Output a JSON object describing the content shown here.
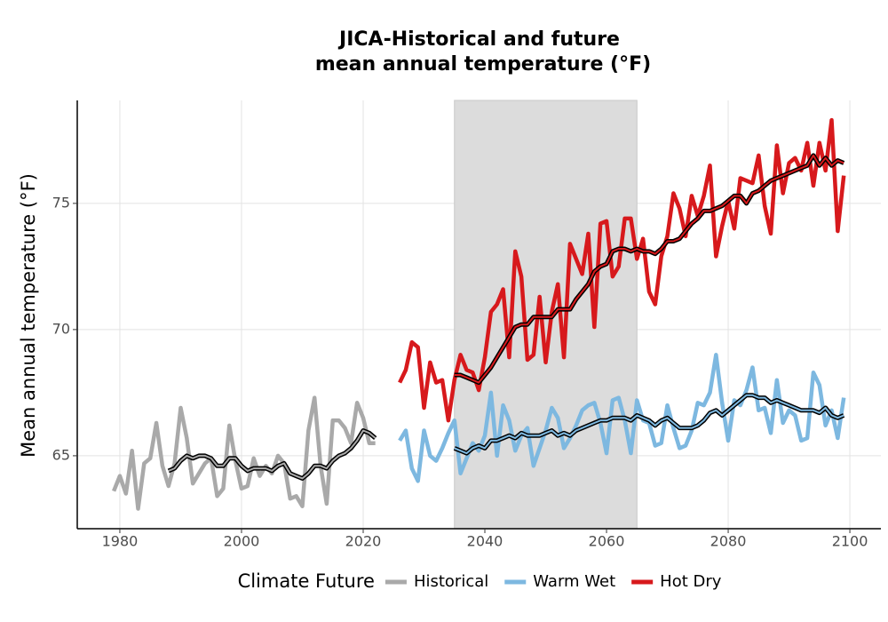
{
  "chart_data": {
    "type": "line",
    "title": [
      "JICA-Historical and future",
      "mean annual temperature (°F)"
    ],
    "y_label": "Mean annual temperature (°F)",
    "legend_title": "Climate Future",
    "legend": "bottom",
    "grid": true,
    "shade": [
      2035,
      2065
    ],
    "xlim": [
      1973,
      2105.1
    ],
    "xticks": [
      1980,
      2000,
      2020,
      2040,
      2060,
      2080,
      2100
    ],
    "ylim": [
      62.11,
      79.08
    ],
    "yticks": [
      65,
      70,
      75
    ],
    "series": [
      {
        "name": "Historical",
        "color": "#a9a9a9",
        "x": [
          1979,
          1980,
          1981,
          1982,
          1983,
          1984,
          1985,
          1986,
          1987,
          1988,
          1989,
          1990,
          1991,
          1992,
          1993,
          1994,
          1995,
          1996,
          1997,
          1998,
          1999,
          2000,
          2001,
          2002,
          2003,
          2004,
          2005,
          2006,
          2007,
          2008,
          2009,
          2010,
          2011,
          2012,
          2013,
          2014,
          2015,
          2016,
          2017,
          2018,
          2019,
          2020,
          2021,
          2022
        ],
        "values": [
          63.6,
          64.2,
          63.5,
          65.2,
          62.9,
          64.7,
          64.9,
          66.3,
          64.6,
          63.8,
          64.7,
          66.9,
          65.7,
          63.9,
          64.3,
          64.7,
          64.9,
          63.4,
          63.7,
          66.2,
          64.8,
          63.7,
          63.8,
          64.9,
          64.2,
          64.6,
          64.3,
          65.0,
          64.7,
          63.3,
          63.4,
          63.0,
          66.0,
          67.3,
          64.6,
          63.1,
          66.4,
          66.4,
          66.1,
          65.5,
          67.1,
          66.5,
          65.5,
          65.5
        ],
        "smooth": [
          null,
          null,
          null,
          null,
          null,
          null,
          null,
          null,
          null,
          64.4,
          64.5,
          64.8,
          65.0,
          64.9,
          65.0,
          65.0,
          64.9,
          64.6,
          64.6,
          64.9,
          64.9,
          64.6,
          64.4,
          64.5,
          64.5,
          64.5,
          64.4,
          64.6,
          64.7,
          64.3,
          64.2,
          64.1,
          64.3,
          64.6,
          64.6,
          64.5,
          64.8,
          65.0,
          65.1,
          65.3,
          65.6,
          66.0,
          65.9,
          65.7
        ]
      },
      {
        "name": "Warm Wet",
        "color": "#7db8e0",
        "x": [
          2026,
          2027,
          2028,
          2029,
          2030,
          2031,
          2032,
          2033,
          2034,
          2035,
          2036,
          2037,
          2038,
          2039,
          2040,
          2041,
          2042,
          2043,
          2044,
          2045,
          2046,
          2047,
          2048,
          2049,
          2050,
          2051,
          2052,
          2053,
          2054,
          2055,
          2056,
          2057,
          2058,
          2059,
          2060,
          2061,
          2062,
          2063,
          2064,
          2065,
          2066,
          2067,
          2068,
          2069,
          2070,
          2071,
          2072,
          2073,
          2074,
          2075,
          2076,
          2077,
          2078,
          2079,
          2080,
          2081,
          2082,
          2083,
          2084,
          2085,
          2086,
          2087,
          2088,
          2089,
          2090,
          2091,
          2092,
          2093,
          2094,
          2095,
          2096,
          2097,
          2098,
          2099
        ],
        "values": [
          65.6,
          66.0,
          64.5,
          64.0,
          66.0,
          65.0,
          64.8,
          65.3,
          65.9,
          66.4,
          64.3,
          64.9,
          65.5,
          65.2,
          65.8,
          67.5,
          65.0,
          67.0,
          66.4,
          65.2,
          65.8,
          66.1,
          64.6,
          65.3,
          66.0,
          66.9,
          66.5,
          65.3,
          65.7,
          66.2,
          66.8,
          67.0,
          67.1,
          66.3,
          65.1,
          67.2,
          67.3,
          66.4,
          65.1,
          67.2,
          66.4,
          66.3,
          65.4,
          65.5,
          67.0,
          66.1,
          65.3,
          65.4,
          66.0,
          67.1,
          67.0,
          67.5,
          69.0,
          67.1,
          65.6,
          67.2,
          67.0,
          67.6,
          68.5,
          66.8,
          66.9,
          65.9,
          68.0,
          66.3,
          66.8,
          66.6,
          65.6,
          65.7,
          68.3,
          67.8,
          66.2,
          66.8,
          65.7,
          67.3
        ],
        "smooth": [
          null,
          null,
          null,
          null,
          null,
          null,
          null,
          null,
          null,
          65.3,
          65.2,
          65.1,
          65.3,
          65.4,
          65.3,
          65.6,
          65.6,
          65.7,
          65.8,
          65.7,
          65.9,
          65.8,
          65.8,
          65.8,
          65.9,
          66.0,
          65.8,
          65.9,
          65.8,
          66.0,
          66.1,
          66.2,
          66.3,
          66.4,
          66.4,
          66.5,
          66.5,
          66.5,
          66.4,
          66.6,
          66.5,
          66.4,
          66.2,
          66.4,
          66.5,
          66.3,
          66.1,
          66.1,
          66.1,
          66.2,
          66.4,
          66.7,
          66.8,
          66.6,
          66.8,
          67.0,
          67.2,
          67.4,
          67.4,
          67.3,
          67.3,
          67.1,
          67.2,
          67.1,
          67.0,
          66.9,
          66.8,
          66.8,
          66.8,
          66.7,
          66.9,
          66.6,
          66.5,
          66.6
        ]
      },
      {
        "name": "Hot Dry",
        "color": "#d7191c",
        "x": [
          2026,
          2027,
          2028,
          2029,
          2030,
          2031,
          2032,
          2033,
          2034,
          2035,
          2036,
          2037,
          2038,
          2039,
          2040,
          2041,
          2042,
          2043,
          2044,
          2045,
          2046,
          2047,
          2048,
          2049,
          2050,
          2051,
          2052,
          2053,
          2054,
          2055,
          2056,
          2057,
          2058,
          2059,
          2060,
          2061,
          2062,
          2063,
          2064,
          2065,
          2066,
          2067,
          2068,
          2069,
          2070,
          2071,
          2072,
          2073,
          2074,
          2075,
          2076,
          2077,
          2078,
          2079,
          2080,
          2081,
          2082,
          2083,
          2084,
          2085,
          2086,
          2087,
          2088,
          2089,
          2090,
          2091,
          2092,
          2093,
          2094,
          2095,
          2096,
          2097,
          2098,
          2099
        ],
        "values": [
          67.9,
          68.4,
          69.5,
          69.3,
          66.9,
          68.7,
          67.9,
          68.0,
          66.4,
          68.0,
          69.0,
          68.4,
          68.3,
          67.6,
          68.9,
          70.7,
          71.0,
          71.6,
          68.9,
          73.1,
          72.1,
          68.8,
          69.0,
          71.3,
          68.7,
          70.7,
          71.8,
          68.9,
          73.4,
          72.8,
          72.2,
          73.8,
          70.1,
          74.2,
          74.3,
          72.1,
          72.5,
          74.4,
          74.4,
          72.8,
          73.6,
          71.5,
          71.0,
          72.9,
          73.7,
          75.4,
          74.8,
          73.7,
          75.3,
          74.5,
          75.3,
          76.5,
          72.9,
          74.1,
          75.1,
          74.0,
          76.0,
          75.9,
          75.8,
          76.9,
          74.9,
          73.8,
          77.3,
          75.4,
          76.6,
          76.8,
          76.3,
          77.4,
          75.7,
          77.4,
          76.3,
          78.3,
          73.9,
          76.1
        ],
        "smooth": [
          null,
          null,
          null,
          null,
          null,
          null,
          null,
          null,
          null,
          68.2,
          68.2,
          68.1,
          68.0,
          67.9,
          68.2,
          68.5,
          68.9,
          69.3,
          69.7,
          70.1,
          70.2,
          70.2,
          70.5,
          70.5,
          70.5,
          70.5,
          70.8,
          70.8,
          70.8,
          71.2,
          71.5,
          71.8,
          72.3,
          72.5,
          72.6,
          73.1,
          73.2,
          73.2,
          73.1,
          73.2,
          73.1,
          73.1,
          73.0,
          73.2,
          73.5,
          73.5,
          73.6,
          73.9,
          74.2,
          74.4,
          74.7,
          74.7,
          74.8,
          74.9,
          75.1,
          75.3,
          75.3,
          75.0,
          75.4,
          75.5,
          75.7,
          75.9,
          76.0,
          76.1,
          76.2,
          76.3,
          76.4,
          76.5,
          76.9,
          76.5,
          76.8,
          76.5,
          76.7,
          76.6
        ]
      }
    ]
  }
}
